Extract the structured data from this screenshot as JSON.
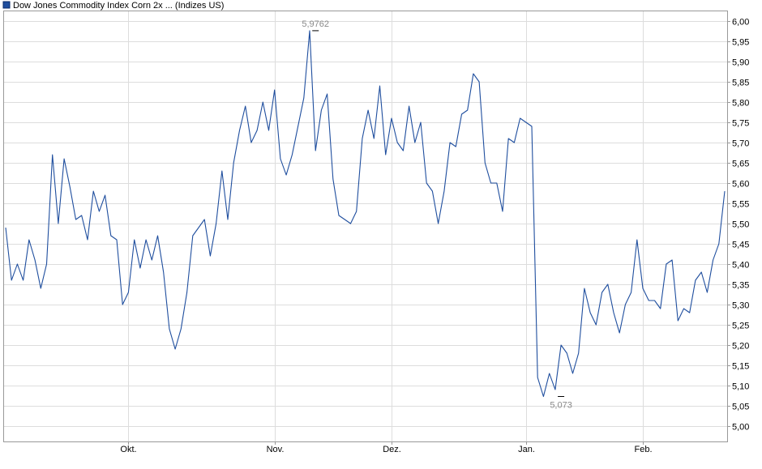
{
  "chart_data": {
    "type": "line",
    "title": "Dow Jones Commodity Index Corn 2x ... (Indizes US)",
    "xlabel": "",
    "ylabel": "",
    "ylim": [
      4.97,
      6.03
    ],
    "yticks": [
      "6,00",
      "5,95",
      "5,90",
      "5,85",
      "5,80",
      "5,75",
      "5,70",
      "5,65",
      "5,60",
      "5,55",
      "5,50",
      "5,45",
      "5,40",
      "5,35",
      "5,30",
      "5,25",
      "5,20",
      "5,15",
      "5,10",
      "5,05",
      "5,00"
    ],
    "ytick_values": [
      6.0,
      5.95,
      5.9,
      5.85,
      5.8,
      5.75,
      5.7,
      5.65,
      5.6,
      5.55,
      5.5,
      5.45,
      5.4,
      5.35,
      5.3,
      5.25,
      5.2,
      5.15,
      5.1,
      5.05,
      5.0
    ],
    "xticks": [
      "Okt.",
      "Nov.",
      "Dez.",
      "Jan.",
      "Feb."
    ],
    "xtick_index": [
      21,
      46,
      66,
      89,
      109
    ],
    "grid": true,
    "line_color": "#1f4e9e",
    "grid_color": "#dddddd",
    "annotations": [
      {
        "label": "5,9762",
        "index": 53,
        "value": 5.9762
      },
      {
        "label": "5,073",
        "index": 95,
        "value": 5.073
      }
    ],
    "series": [
      {
        "name": "",
        "values": [
          5.49,
          5.36,
          5.4,
          5.36,
          5.46,
          5.41,
          5.34,
          5.4,
          5.67,
          5.5,
          5.66,
          5.59,
          5.51,
          5.52,
          5.46,
          5.58,
          5.53,
          5.57,
          5.47,
          5.46,
          5.3,
          5.33,
          5.46,
          5.39,
          5.46,
          5.41,
          5.47,
          5.38,
          5.24,
          5.19,
          5.24,
          5.33,
          5.47,
          5.49,
          5.51,
          5.42,
          5.5,
          5.63,
          5.51,
          5.65,
          5.73,
          5.79,
          5.7,
          5.73,
          5.8,
          5.73,
          5.83,
          5.66,
          5.62,
          5.67,
          5.74,
          5.81,
          5.9762,
          5.68,
          5.78,
          5.82,
          5.61,
          5.52,
          5.51,
          5.5,
          5.53,
          5.71,
          5.78,
          5.71,
          5.84,
          5.67,
          5.76,
          5.7,
          5.68,
          5.79,
          5.7,
          5.75,
          5.6,
          5.58,
          5.5,
          5.58,
          5.7,
          5.69,
          5.77,
          5.78,
          5.87,
          5.85,
          5.65,
          5.6,
          5.6,
          5.53,
          5.71,
          5.7,
          5.76,
          5.75,
          5.74,
          5.12,
          5.073,
          5.13,
          5.09,
          5.2,
          5.18,
          5.13,
          5.18,
          5.34,
          5.28,
          5.25,
          5.33,
          5.35,
          5.28,
          5.23,
          5.3,
          5.33,
          5.46,
          5.34,
          5.31,
          5.31,
          5.29,
          5.4,
          5.41,
          5.26,
          5.29,
          5.28,
          5.36,
          5.38,
          5.33,
          5.41,
          5.45,
          5.58
        ]
      }
    ]
  }
}
